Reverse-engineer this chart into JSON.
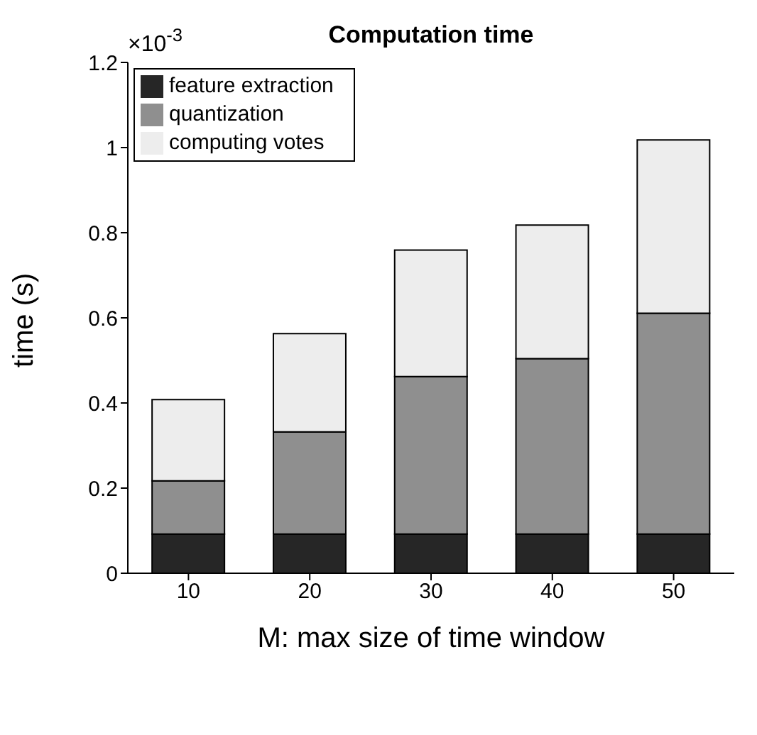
{
  "chart_data": {
    "type": "bar",
    "title": "Computation time",
    "xlabel": "M: max size of time window",
    "ylabel": "time (s)",
    "annotations": [
      "×10$^{-3}$"
    ],
    "categories": [
      "10",
      "20",
      "30",
      "40",
      "50"
    ],
    "stacked": true,
    "series": [
      {
        "name": "feature extraction",
        "color": "#262626",
        "values": [
          0.092,
          0.092,
          0.092,
          0.092,
          0.092
        ]
      },
      {
        "name": "quantization",
        "color": "#8f8f8f",
        "values": [
          0.125,
          0.24,
          0.37,
          0.412,
          0.519
        ]
      },
      {
        "name": "computing votes",
        "color": "#ededed",
        "values": [
          0.191,
          0.231,
          0.297,
          0.314,
          0.407
        ]
      }
    ],
    "ylim": [
      0,
      1.2
    ],
    "yticks": [
      0,
      0.2,
      0.4,
      0.6,
      0.8,
      1,
      1.2
    ],
    "grid": false,
    "legend": "top left"
  }
}
